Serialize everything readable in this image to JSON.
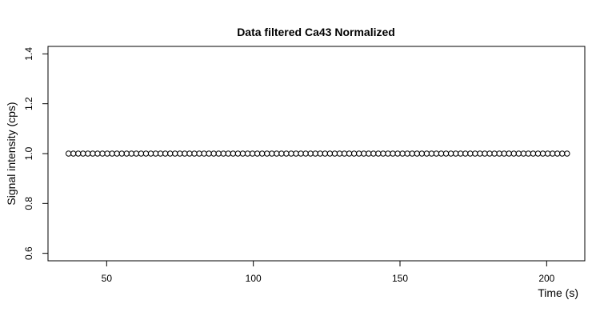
{
  "chart_data": {
    "type": "scatter",
    "title": "Data filtered Ca43 Normalized",
    "xlabel": "Time (s)",
    "ylabel": "Signal intensity (cps)",
    "xlim": [
      30,
      213
    ],
    "ylim": [
      0.57,
      1.43
    ],
    "xticks": [
      50,
      100,
      150,
      200
    ],
    "yticks": [
      0.6,
      0.8,
      1.0,
      1.2,
      1.4
    ],
    "xtick_labels": [
      "50",
      "100",
      "150",
      "200"
    ],
    "ytick_labels": [
      "0.6",
      "0.8",
      "1.0",
      "1.2",
      "1.4"
    ],
    "grid": false,
    "marker": "open-circle",
    "series": [
      {
        "x_start": 37,
        "x_end": 207,
        "x_step": 1.65,
        "y_constant": 1.0
      }
    ]
  }
}
